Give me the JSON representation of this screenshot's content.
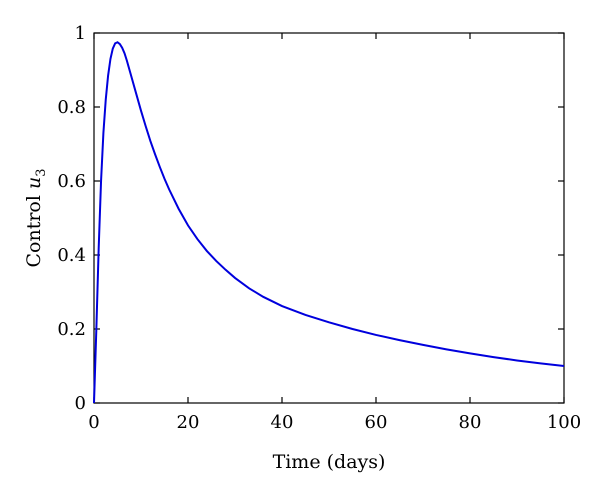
{
  "chart_data": {
    "type": "line",
    "title": "",
    "xlabel": "Time (days)",
    "ylabel_prefix": "Control ",
    "ylabel_var": "u",
    "ylabel_sub": "3",
    "xlim": [
      0,
      100
    ],
    "ylim": [
      0,
      1
    ],
    "xticks": [
      0,
      20,
      40,
      60,
      80,
      100
    ],
    "xtick_labels": [
      "0",
      "20",
      "40",
      "60",
      "80",
      "100"
    ],
    "yticks": [
      0,
      0.2,
      0.4,
      0.6,
      0.8,
      1
    ],
    "ytick_labels": [
      "0",
      "0.2",
      "0.4",
      "0.6",
      "0.8",
      "1"
    ],
    "grid": false,
    "line_color": "#0000dd",
    "series": [
      {
        "x": [
          0,
          0.5,
          1,
          1.5,
          2,
          2.5,
          3,
          3.5,
          4,
          4.5,
          5,
          5.5,
          6,
          6.5,
          7,
          8,
          9,
          10,
          11,
          12,
          13,
          14,
          15,
          16,
          18,
          20,
          22,
          24,
          26,
          28,
          30,
          33,
          36,
          40,
          45,
          50,
          55,
          60,
          65,
          70,
          75,
          80,
          85,
          90,
          95,
          100
        ],
        "y": [
          0,
          0.2,
          0.42,
          0.6,
          0.73,
          0.82,
          0.885,
          0.93,
          0.958,
          0.972,
          0.975,
          0.97,
          0.96,
          0.945,
          0.925,
          0.88,
          0.835,
          0.79,
          0.748,
          0.708,
          0.672,
          0.638,
          0.606,
          0.577,
          0.525,
          0.48,
          0.443,
          0.411,
          0.384,
          0.36,
          0.338,
          0.31,
          0.287,
          0.262,
          0.238,
          0.218,
          0.2,
          0.184,
          0.17,
          0.157,
          0.145,
          0.134,
          0.124,
          0.115,
          0.107,
          0.1
        ]
      }
    ]
  }
}
